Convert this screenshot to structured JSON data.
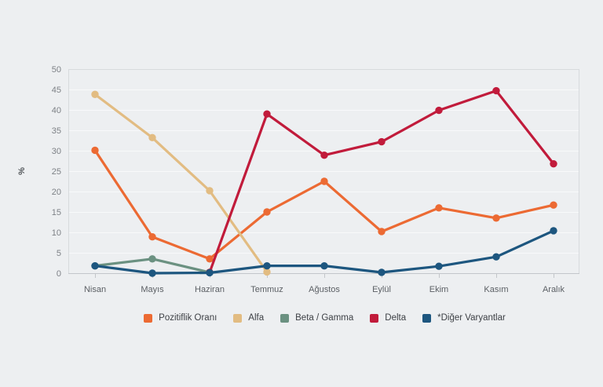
{
  "chart_data": {
    "type": "line",
    "title": "",
    "xlabel": "",
    "ylabel": "%",
    "ylim": [
      0,
      50
    ],
    "ytick_step": 5,
    "yticks": [
      0,
      5,
      10,
      15,
      20,
      25,
      30,
      35,
      40,
      45,
      50
    ],
    "grid": true,
    "legend_position": "bottom",
    "categories": [
      "Nisan",
      "Mayıs",
      "Haziran",
      "Temmuz",
      "Ağustos",
      "Eylül",
      "Ekim",
      "Kasım",
      "Aralık"
    ],
    "series": [
      {
        "name": "Pozitiflik Oranı",
        "color": "#EC6A33",
        "values": [
          30.1,
          8.9,
          3.5,
          15.0,
          22.5,
          10.2,
          16.0,
          13.5,
          16.7
        ]
      },
      {
        "name": "Alfa",
        "color": "#E2BC82",
        "values": [
          43.8,
          33.2,
          20.2,
          0.3,
          null,
          null,
          null,
          null,
          null
        ]
      },
      {
        "name": "Beta / Gamma",
        "color": "#6B9181",
        "values": [
          1.8,
          3.5,
          0.2,
          null,
          null,
          null,
          null,
          null,
          null
        ]
      },
      {
        "name": "Delta",
        "color": "#C11B3B",
        "values": [
          null,
          null,
          0.2,
          39.0,
          28.9,
          32.2,
          39.9,
          44.7,
          26.8
        ]
      },
      {
        "name": "*Diğer Varyantlar",
        "color": "#1D567F",
        "values": [
          1.8,
          0.0,
          0.1,
          1.8,
          1.8,
          0.2,
          1.7,
          4.0,
          10.4
        ]
      }
    ]
  },
  "colors": {
    "background": "#edeff1",
    "plot_border": "#d7dadd",
    "axis_line": "#c3c6ca",
    "gridline": "#f8f9fa",
    "y_tick_text": "#7d8186",
    "x_tick_text": "#5c6065",
    "axis_label_text": "#4f5357"
  }
}
